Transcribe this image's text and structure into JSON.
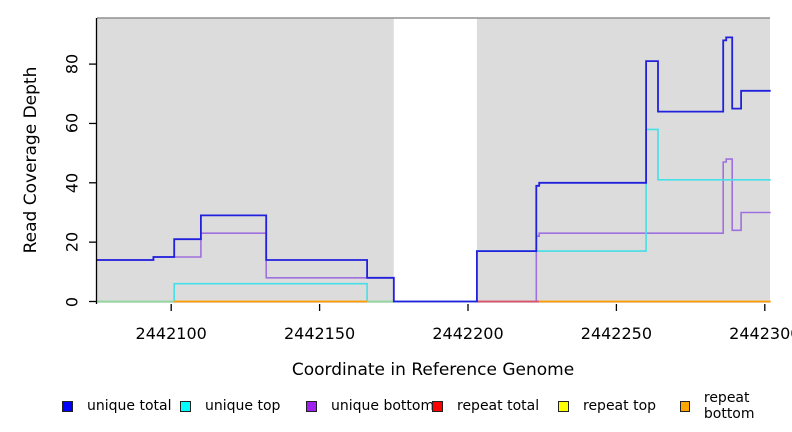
{
  "figure": {
    "x_axis_title": "Coordinate in Reference Genome",
    "y_axis_title": "Read Coverage Depth"
  },
  "chart_data": {
    "type": "line",
    "subtype": "step-after-coverage",
    "title": "",
    "xlabel": "Coordinate in Reference Genome",
    "ylabel": "Read Coverage Depth",
    "xlim": [
      2442075,
      2442302
    ],
    "ylim": [
      0,
      95
    ],
    "x_ticks": [
      2442100,
      2442150,
      2442200,
      2442250,
      2442300
    ],
    "y_ticks": [
      0,
      20,
      40,
      60,
      80
    ],
    "grid": false,
    "plot_bg_color": "#dcdcdc",
    "gap_region": {
      "x1": 2442175,
      "x2": 2442203,
      "color": "#ffffff"
    },
    "series": [
      {
        "name": "unique bottom",
        "color": "#9f70df",
        "steps": [
          [
            2442075,
            14
          ],
          [
            2442094,
            15
          ],
          [
            2442110,
            23
          ],
          [
            2442132,
            8
          ],
          [
            2442175,
            0
          ],
          [
            2442223,
            22
          ],
          [
            2442224,
            23
          ],
          [
            2442286,
            47
          ],
          [
            2442287,
            48
          ],
          [
            2442289,
            24
          ],
          [
            2442292,
            30
          ],
          [
            2442302,
            30
          ]
        ]
      },
      {
        "name": "unique top",
        "color": "#45dfe8",
        "steps": [
          [
            2442075,
            0
          ],
          [
            2442101,
            6
          ],
          [
            2442166,
            0
          ],
          [
            2442203,
            17
          ],
          [
            2442260,
            58
          ],
          [
            2442264,
            41
          ],
          [
            2442302,
            41
          ]
        ]
      },
      {
        "name": "unique total",
        "color": "#2121dd",
        "steps": [
          [
            2442075,
            14
          ],
          [
            2442094,
            15
          ],
          [
            2442101,
            21
          ],
          [
            2442110,
            29
          ],
          [
            2442132,
            14
          ],
          [
            2442166,
            8
          ],
          [
            2442175,
            0
          ],
          [
            2442203,
            17
          ],
          [
            2442223,
            39
          ],
          [
            2442224,
            40
          ],
          [
            2442260,
            81
          ],
          [
            2442264,
            64
          ],
          [
            2442286,
            88
          ],
          [
            2442287,
            89
          ],
          [
            2442289,
            65
          ],
          [
            2442292,
            71
          ],
          [
            2442302,
            71
          ]
        ]
      }
    ],
    "zero_line_segments": [
      {
        "name": "repeat top at zero",
        "x1": 2442075,
        "x2": 2442101,
        "color": "#98d89c"
      },
      {
        "name": "repeat bottom at zero",
        "x1": 2442101,
        "x2": 2442166,
        "color": "#ff9d00"
      },
      {
        "name": "repeat top at zero",
        "x1": 2442166,
        "x2": 2442175,
        "color": "#98d89c"
      },
      {
        "name": "repeat total at zero",
        "x1": 2442203,
        "x2": 2442224,
        "color": "#e05565"
      },
      {
        "name": "repeat bottom at zero",
        "x1": 2442224,
        "x2": 2442302,
        "color": "#ff9d00"
      }
    ],
    "legend_position": "bottom",
    "legend": [
      {
        "label": "unique total",
        "color": "#0000ff"
      },
      {
        "label": "unique top",
        "color": "#00ffff"
      },
      {
        "label": "unique bottom",
        "color": "#a020f0"
      },
      {
        "label": "repeat total",
        "color": "#ff0000"
      },
      {
        "label": "repeat top",
        "color": "#ffff00"
      },
      {
        "label": "repeat bottom",
        "color": "#ffa500"
      }
    ]
  }
}
